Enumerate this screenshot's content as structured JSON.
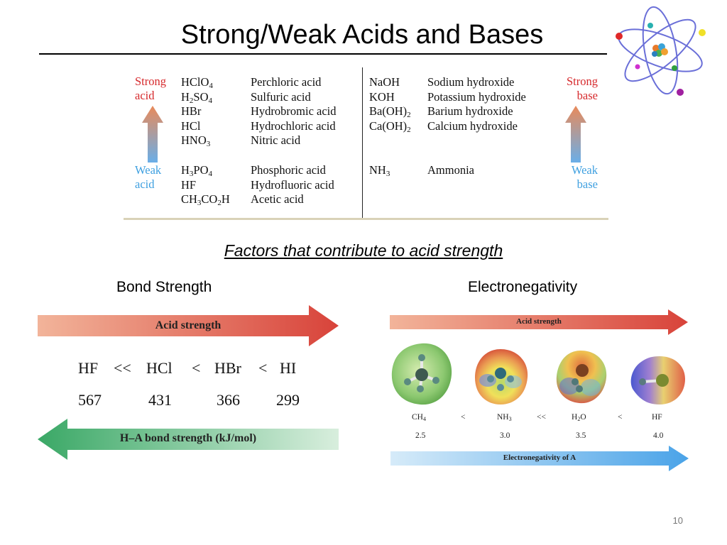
{
  "slide": {
    "title": "Strong/Weak Acids and Bases",
    "page_number": "10"
  },
  "table": {
    "labels": {
      "strong_acid": [
        "Strong",
        "acid"
      ],
      "weak_acid": [
        "Weak",
        "acid"
      ],
      "strong_base": [
        "Strong",
        "base"
      ],
      "weak_base": [
        "Weak",
        "base"
      ]
    },
    "strong_acids": [
      {
        "formula": "HClO<sub>4</sub>",
        "name": "Perchloric acid"
      },
      {
        "formula": "H<sub>2</sub>SO<sub>4</sub>",
        "name": "Sulfuric acid"
      },
      {
        "formula": "HBr",
        "name": "Hydrobromic acid"
      },
      {
        "formula": "HCl",
        "name": "Hydrochloric acid"
      },
      {
        "formula": "HNO<sub>3</sub>",
        "name": "Nitric acid"
      }
    ],
    "weak_acids": [
      {
        "formula": "H<sub>3</sub>PO<sub>4</sub>",
        "name": "Phosphoric acid"
      },
      {
        "formula": "HF",
        "name": "Hydrofluoric acid"
      },
      {
        "formula": "CH<sub>3</sub>CO<sub>2</sub>H",
        "name": "Acetic acid"
      }
    ],
    "strong_bases": [
      {
        "formula": "NaOH",
        "name": "Sodium hydroxide"
      },
      {
        "formula": "KOH",
        "name": "Potassium hydroxide"
      },
      {
        "formula": "Ba(OH)<sub>2</sub>",
        "name": "Barium hydroxide"
      },
      {
        "formula": "Ca(OH)<sub>2</sub>",
        "name": "Calcium hydroxide"
      }
    ],
    "weak_bases": [
      {
        "formula": "NH<sub>3</sub>",
        "name": "Ammonia"
      }
    ]
  },
  "factors": {
    "heading": "Factors that contribute to acid strength",
    "bond_strength": {
      "heading": "Bond Strength",
      "acid_strength_label": "Acid strength",
      "acids": [
        "HF",
        "<<",
        "HCl",
        "<",
        "HBr",
        "<",
        "HI"
      ],
      "values": [
        "567",
        "431",
        "366",
        "299"
      ],
      "bond_strength_label": "H–A bond strength (kJ/mol)"
    },
    "electronegativity": {
      "heading": "Electronegativity",
      "acid_strength_label": "Acid strength",
      "molecules": [
        "CH<sub>4</sub>",
        "<",
        "NH<sub>3</sub>",
        "<<",
        "H<sub>2</sub>O",
        "<",
        "HF"
      ],
      "values": [
        "2.5",
        "3.0",
        "3.5",
        "4.0"
      ],
      "electronegativity_label": "Electronegativity of A"
    }
  },
  "colors": {
    "red_arrow": "#d9534a",
    "green_arrow": "#4caf72",
    "blue_arrow": "#4aa3e8",
    "strong_label": "#d6292c",
    "weak_label": "#3fa0e0"
  }
}
